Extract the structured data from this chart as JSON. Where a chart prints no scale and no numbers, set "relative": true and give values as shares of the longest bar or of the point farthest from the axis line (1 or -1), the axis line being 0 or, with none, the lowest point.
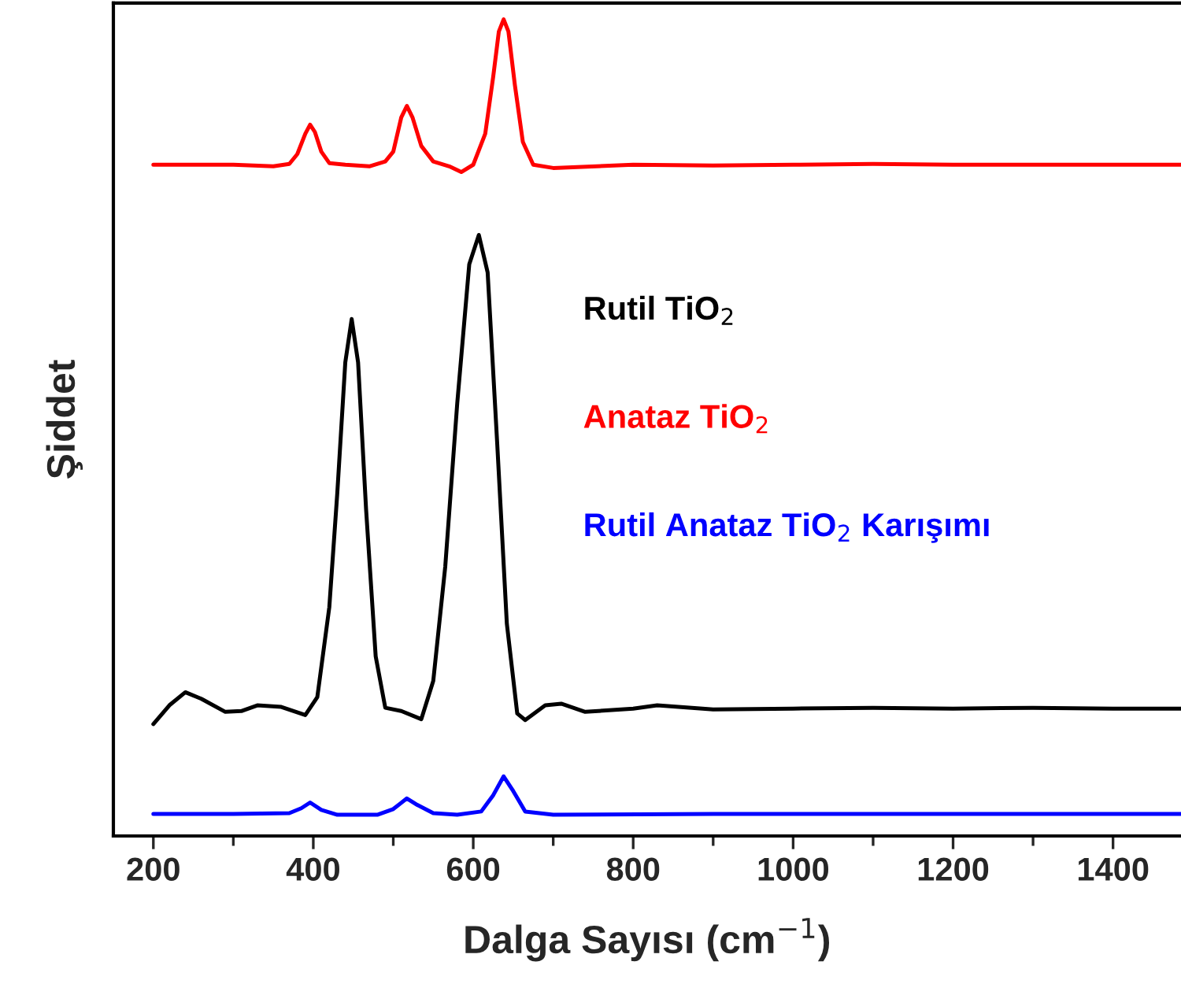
{
  "chart_data": {
    "type": "line",
    "relative": true,
    "xlabel": "Dalga Sayısı (cm$^{−1}$)",
    "ylabel": "Şiddet",
    "xlim": [
      150,
      1485
    ],
    "xticks": [
      200,
      {
        "value": 300,
        "label": null
      },
      400,
      {
        "value": 500,
        "label": null
      },
      600,
      {
        "value": 700,
        "label": null
      },
      800,
      {
        "value": 900,
        "label": null
      },
      1000,
      {
        "value": 1100,
        "label": null
      },
      1200,
      {
        "value": 1300,
        "label": null
      },
      1400
    ],
    "tick_labels": "x",
    "grid": false,
    "line_style": "solid",
    "marker": "none",
    "series": [
      {
        "name": "Rutil TiO$_{2}$",
        "color": "#000000",
        "x": [
          200,
          220,
          240,
          260,
          290,
          310,
          330,
          360,
          390,
          405,
          420,
          430,
          440,
          448,
          456,
          466,
          478,
          490,
          510,
          535,
          550,
          565,
          580,
          595,
          607,
          618,
          630,
          642,
          655,
          665,
          690,
          710,
          740,
          800,
          830,
          900,
          1000,
          1100,
          1200,
          1300,
          1400,
          1485
        ],
        "values": [
          0.137,
          0.16,
          0.176,
          0.168,
          0.152,
          0.153,
          0.16,
          0.158,
          0.148,
          0.17,
          0.28,
          0.42,
          0.58,
          0.633,
          0.58,
          0.4,
          0.22,
          0.157,
          0.153,
          0.143,
          0.19,
          0.33,
          0.53,
          0.7,
          0.736,
          0.69,
          0.48,
          0.26,
          0.15,
          0.142,
          0.16,
          0.162,
          0.152,
          0.156,
          0.16,
          0.155,
          0.156,
          0.157,
          0.156,
          0.157,
          0.156,
          0.156
        ]
      },
      {
        "name": "Anataz TiO$_{2}$",
        "color": "#ff0000",
        "x": [
          200,
          300,
          350,
          370,
          380,
          390,
          396,
          402,
          410,
          420,
          440,
          470,
          490,
          500,
          510,
          517,
          524,
          535,
          550,
          570,
          585,
          600,
          615,
          625,
          632,
          638,
          644,
          652,
          662,
          675,
          700,
          800,
          900,
          1000,
          1100,
          1200,
          1300,
          1400,
          1485
        ],
        "values": [
          0.822,
          0.822,
          0.82,
          0.823,
          0.835,
          0.86,
          0.871,
          0.862,
          0.838,
          0.824,
          0.822,
          0.82,
          0.826,
          0.838,
          0.88,
          0.894,
          0.88,
          0.845,
          0.826,
          0.82,
          0.813,
          0.822,
          0.86,
          0.93,
          0.985,
          1.0,
          0.985,
          0.92,
          0.85,
          0.822,
          0.818,
          0.822,
          0.821,
          0.822,
          0.823,
          0.822,
          0.822,
          0.822,
          0.822
        ]
      },
      {
        "name": "Rutil Anataz TiO$_{2}$ Karışımı",
        "color": "#0000ff",
        "x": [
          200,
          300,
          370,
          385,
          396,
          410,
          430,
          480,
          500,
          517,
          530,
          550,
          580,
          610,
          625,
          638,
          650,
          665,
          700,
          900,
          1100,
          1300,
          1485
        ],
        "values": [
          0.027,
          0.027,
          0.028,
          0.034,
          0.041,
          0.032,
          0.026,
          0.026,
          0.033,
          0.046,
          0.038,
          0.028,
          0.026,
          0.03,
          0.05,
          0.073,
          0.055,
          0.03,
          0.026,
          0.027,
          0.027,
          0.027,
          0.027
        ]
      }
    ]
  }
}
